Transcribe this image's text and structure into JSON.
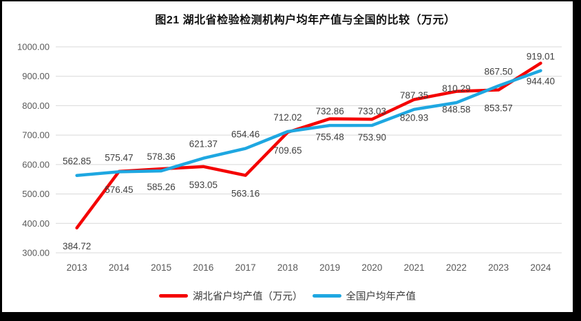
{
  "frame": {
    "background": "#ffffff",
    "border_color": "#000000"
  },
  "chart_data": {
    "type": "line",
    "title": "图21 湖北省检验检测机构户均年产值与全国的比较（万元）",
    "categories": [
      "2013",
      "2014",
      "2015",
      "2016",
      "2017",
      "2018",
      "2019",
      "2020",
      "2021",
      "2022",
      "2023",
      "2024"
    ],
    "series": [
      {
        "name": "湖北省户均产值（万元）",
        "color": "#f40000",
        "label_position": "below",
        "values": [
          384.72,
          576.45,
          585.26,
          593.05,
          563.16,
          709.65,
          755.48,
          753.9,
          820.93,
          848.58,
          853.57,
          944.4
        ]
      },
      {
        "name": "全国户均年产值",
        "color": "#1ea7e1",
        "label_position": "above",
        "values": [
          562.85,
          575.47,
          578.36,
          621.37,
          654.46,
          712.02,
          732.86,
          733.03,
          787.35,
          810.29,
          867.5,
          919.01
        ]
      }
    ],
    "xlabel": "",
    "ylabel": "",
    "ylim": [
      300,
      1000
    ],
    "y_ticks": [
      "300.00",
      "400.00",
      "500.00",
      "600.00",
      "700.00",
      "800.00",
      "900.00",
      "1000.00"
    ],
    "grid": true,
    "legend_position": "bottom",
    "label_decimals": 2
  },
  "colors": {
    "gridline": "#d8d8d8",
    "axis_text": "#595959",
    "data_label": "#3f3f3f",
    "title_text": "#111111",
    "legend_text": "#3a3a3a"
  }
}
